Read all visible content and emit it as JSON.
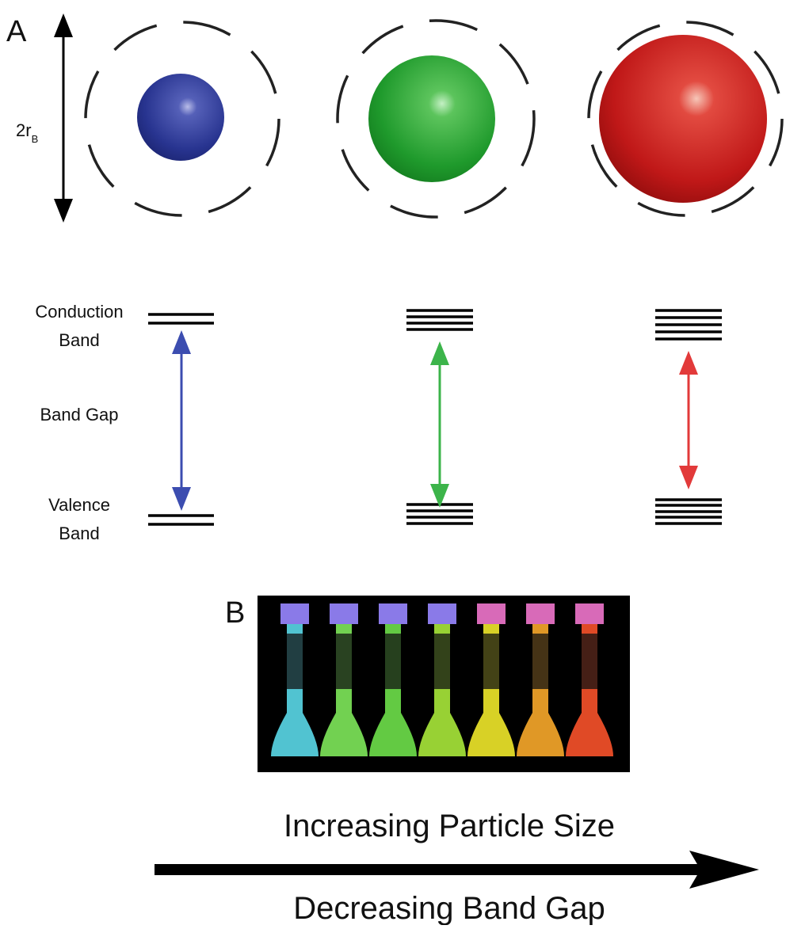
{
  "panel_a": {
    "label": "A",
    "diameter_label": {
      "main": "2r",
      "sub": "B"
    },
    "conduction_band": [
      "Conduction",
      "Band"
    ],
    "band_gap": "Band Gap",
    "valence_band": [
      "Valence",
      "Band"
    ]
  },
  "panel_b": {
    "label": "B",
    "top_caption": "Increasing Particle Size",
    "bottom_caption": "Decreasing Band Gap"
  }
}
